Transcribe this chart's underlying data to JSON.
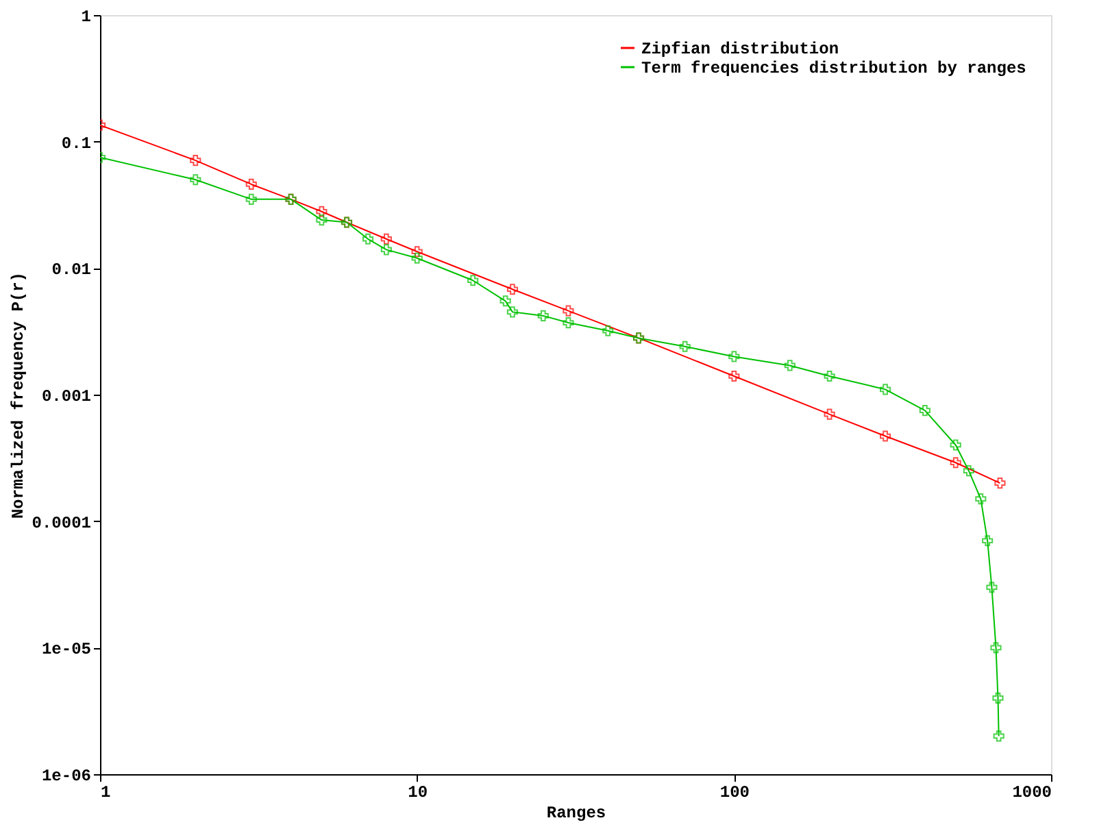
{
  "chart_data": {
    "type": "line",
    "xlabel": "Ranges",
    "ylabel": "Normalized frequency P(r)",
    "log": "xy",
    "xlim": [
      1,
      1000
    ],
    "xticks": [
      1,
      10,
      100,
      1000
    ],
    "ylim": [
      1e-06,
      1
    ],
    "yticks": [
      {
        "value": 1e-06,
        "label": "1e-06"
      },
      {
        "value": 1e-05,
        "label": "1e-05"
      },
      {
        "value": 0.0001,
        "label": "0.0001"
      },
      {
        "value": 0.001,
        "label": "0.001"
      },
      {
        "value": 0.01,
        "label": "0.01"
      },
      {
        "value": 0.1,
        "label": "0.1"
      },
      {
        "value": 1,
        "label": "1"
      }
    ],
    "grid": false,
    "legend": "top right",
    "marker": "cross",
    "line_style": "solid",
    "series": [
      {
        "name": "Zipfian distribution",
        "color": "#ff0000",
        "x": [
          1,
          2,
          3,
          4,
          5,
          6,
          8,
          10,
          20,
          30,
          50,
          100,
          200,
          300,
          500,
          690
        ],
        "values": [
          0.135,
          0.071,
          0.046,
          0.035,
          0.028,
          0.023,
          0.017,
          0.0135,
          0.0068,
          0.0046,
          0.0028,
          0.0014,
          0.0007,
          0.00047,
          0.00029,
          0.0002
        ]
      },
      {
        "name": "Term frequencies distribution by ranges",
        "color": "#00c000",
        "x": [
          1,
          2,
          3,
          4,
          5,
          6,
          7,
          8,
          10,
          15,
          19,
          20,
          25,
          30,
          40,
          50,
          70,
          100,
          150,
          200,
          300,
          400,
          500,
          550,
          600,
          630,
          650,
          670,
          680,
          684
        ],
        "values": [
          0.075,
          0.05,
          0.035,
          0.035,
          0.024,
          0.023,
          0.017,
          0.014,
          0.012,
          0.008,
          0.0055,
          0.0045,
          0.0042,
          0.0037,
          0.0032,
          0.0028,
          0.0024,
          0.002,
          0.0017,
          0.0014,
          0.0011,
          0.00075,
          0.0004,
          0.00025,
          0.00015,
          7e-05,
          3e-05,
          1e-05,
          4e-06,
          2e-06
        ]
      }
    ]
  }
}
